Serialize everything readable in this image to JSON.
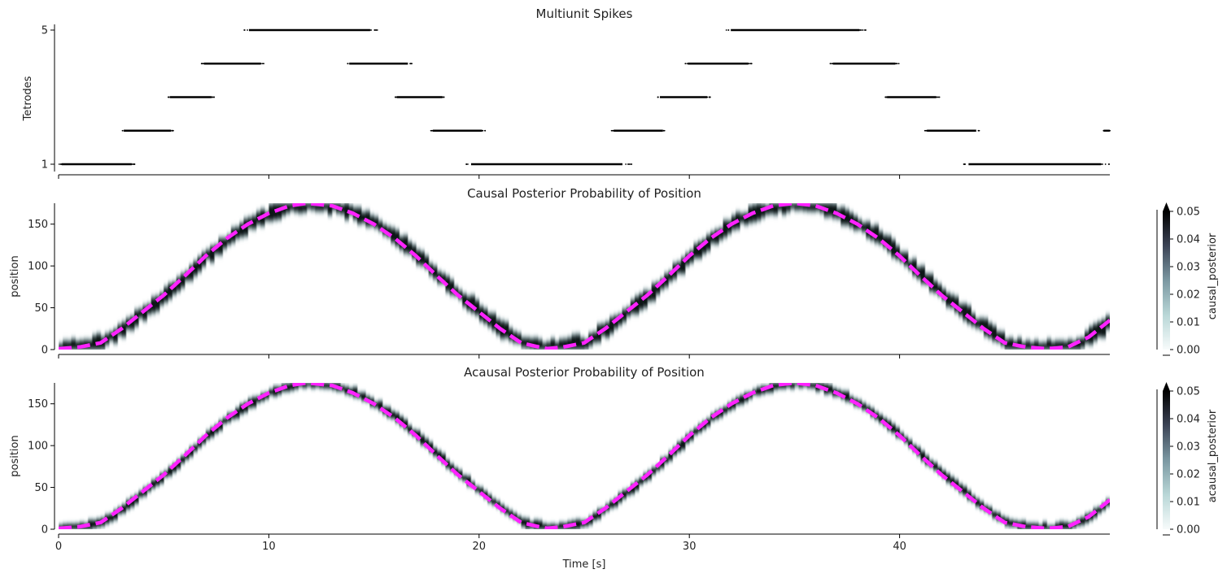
{
  "figure": {
    "xlabel": "Time [s]",
    "x_ticks": [
      0,
      10,
      20,
      30,
      40
    ],
    "xlim": [
      0,
      50
    ]
  },
  "chart_data": [
    {
      "type": "scatter",
      "title": "Multiunit Spikes",
      "ylabel": "Tetrodes",
      "ylim": [
        0.8,
        5.2
      ],
      "y_ticks": [
        1,
        5
      ],
      "marker_color": "#000000",
      "rows": [
        {
          "tetrode": 1,
          "intervals": [
            [
              0.0,
              3.7
            ],
            [
              19.3,
              27.3
            ],
            [
              43.0,
              50.0
            ]
          ]
        },
        {
          "tetrode": 2,
          "intervals": [
            [
              3.0,
              5.5
            ],
            [
              17.7,
              20.3
            ],
            [
              26.3,
              28.9
            ],
            [
              41.2,
              43.8
            ],
            [
              49.7,
              50.0
            ]
          ]
        },
        {
          "tetrode": 3,
          "intervals": [
            [
              5.2,
              7.4
            ],
            [
              16.0,
              18.4
            ],
            [
              28.5,
              31.0
            ],
            [
              39.3,
              41.9
            ]
          ]
        },
        {
          "tetrode": 4,
          "intervals": [
            [
              6.8,
              9.8
            ],
            [
              13.7,
              16.8
            ],
            [
              29.8,
              33.0
            ],
            [
              36.7,
              40.0
            ]
          ]
        },
        {
          "tetrode": 5,
          "intervals": [
            [
              8.8,
              15.2
            ],
            [
              31.7,
              38.5
            ]
          ]
        }
      ]
    },
    {
      "type": "heatmap",
      "title": "Causal Posterior Probability of Position",
      "ylabel": "position",
      "ylim": [
        0,
        175
      ],
      "y_ticks": [
        0,
        50,
        100,
        150
      ],
      "colorbar_label": "causal_posterior",
      "colorbar_range": [
        0,
        0.05
      ],
      "colorbar_ticks": [
        "0.00",
        "0.01",
        "0.02",
        "0.03",
        "0.04",
        "0.05"
      ],
      "posterior_spread": 7,
      "line_color": "#ff22ff",
      "true_position": {
        "x": [
          0,
          1,
          2,
          3,
          4,
          5,
          6,
          7,
          8,
          9,
          10,
          11,
          11.8,
          13,
          14,
          15,
          16,
          17,
          18,
          19,
          20,
          21,
          22,
          23.2,
          24,
          25,
          26,
          27,
          28,
          29,
          30,
          31,
          32,
          33,
          34,
          35,
          36,
          37,
          38,
          39,
          40,
          41,
          42,
          43,
          44,
          45,
          46,
          47,
          48,
          49,
          50
        ],
        "y": [
          1,
          3,
          8,
          25,
          45,
          65,
          88,
          112,
          133,
          150,
          163,
          172,
          175,
          172,
          163,
          150,
          133,
          112,
          88,
          65,
          45,
          25,
          8,
          1,
          3,
          8,
          25,
          45,
          65,
          88,
          112,
          133,
          150,
          163,
          172,
          175,
          172,
          163,
          150,
          133,
          112,
          88,
          65,
          45,
          25,
          8,
          3,
          1,
          3,
          15,
          35
        ]
      }
    },
    {
      "type": "heatmap",
      "title": "Acausal Posterior Probability of Position",
      "ylabel": "position",
      "ylim": [
        0,
        175
      ],
      "y_ticks": [
        0,
        50,
        100,
        150
      ],
      "colorbar_label": "acausal_posterior",
      "colorbar_range": [
        0,
        0.05
      ],
      "colorbar_ticks": [
        "0.00",
        "0.01",
        "0.02",
        "0.03",
        "0.04",
        "0.05"
      ],
      "posterior_spread": 4,
      "line_color": "#ff22ff",
      "true_position": {
        "x": [
          0,
          1,
          2,
          3,
          4,
          5,
          6,
          7,
          8,
          9,
          10,
          11,
          11.8,
          13,
          14,
          15,
          16,
          17,
          18,
          19,
          20,
          21,
          22,
          23.2,
          24,
          25,
          26,
          27,
          28,
          29,
          30,
          31,
          32,
          33,
          34,
          35,
          36,
          37,
          38,
          39,
          40,
          41,
          42,
          43,
          44,
          45,
          46,
          47,
          48,
          49,
          50
        ],
        "y": [
          1,
          3,
          8,
          25,
          45,
          65,
          88,
          112,
          133,
          150,
          163,
          172,
          175,
          172,
          163,
          150,
          133,
          112,
          88,
          65,
          45,
          25,
          8,
          1,
          3,
          8,
          25,
          45,
          65,
          88,
          112,
          133,
          150,
          163,
          172,
          175,
          172,
          163,
          150,
          133,
          112,
          88,
          65,
          45,
          25,
          8,
          3,
          1,
          3,
          15,
          35
        ]
      }
    }
  ]
}
